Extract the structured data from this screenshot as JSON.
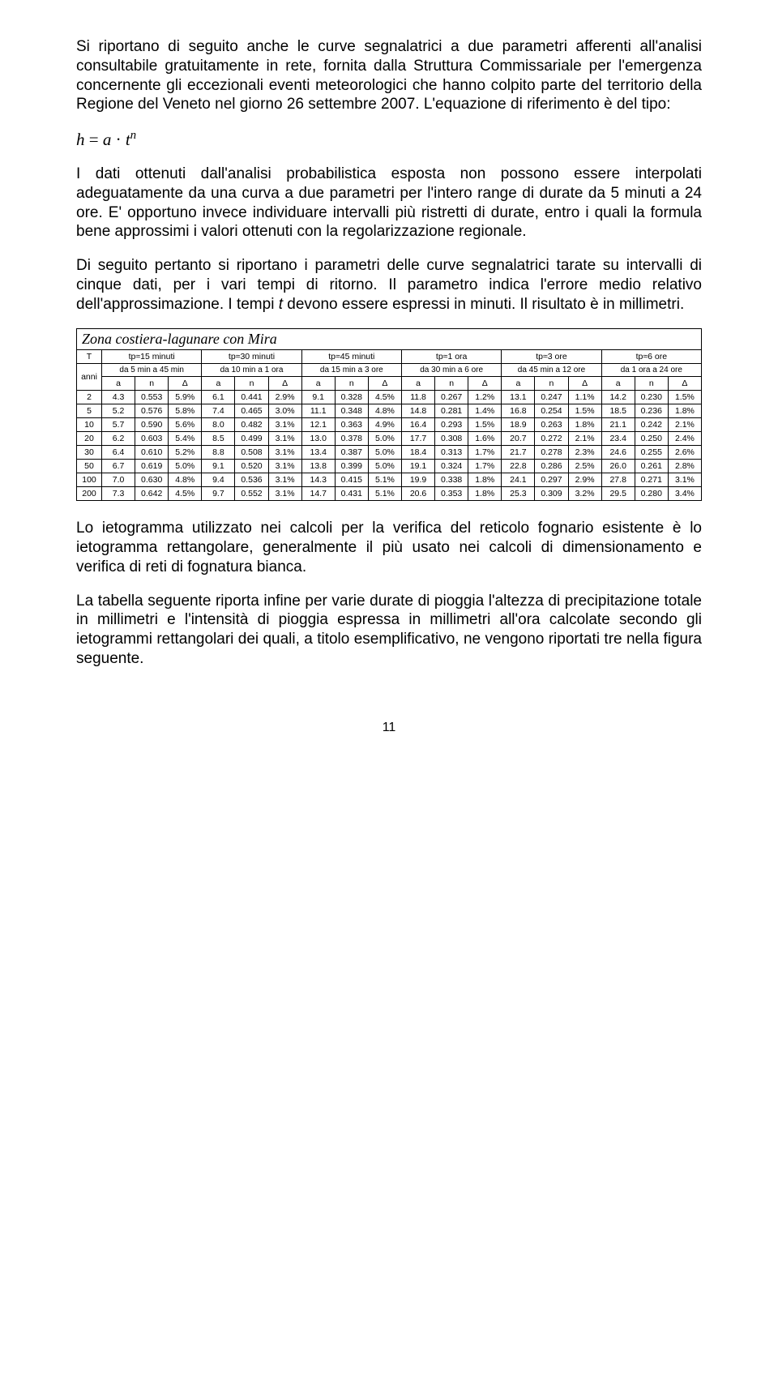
{
  "paragraphs": {
    "p1": "Si riportano di seguito anche le curve segnalatrici a due parametri afferenti all'analisi consultabile gratuitamente in rete, fornita dalla Struttura Commissariale per l'emergenza concernente gli eccezionali eventi meteorologici che hanno colpito parte del territorio della Regione del Veneto nel giorno 26 settembre 2007. L'equazione di riferimento è del tipo:",
    "formula_a": "h",
    "formula_eq": "=",
    "formula_b": "a",
    "formula_c": "t",
    "formula_sup": "n",
    "p2": "I dati ottenuti dall'analisi probabilistica esposta non possono essere interpolati adeguatamente da una curva a due parametri per l'intero range di durate da 5 minuti a 24 ore. E' opportuno invece individuare intervalli più ristretti di durate, entro i quali la formula bene approssimi i valori ottenuti con la regolarizzazione regionale.",
    "p3a": "Di seguito pertanto si riportano i parametri delle curve segnalatrici tarate su intervalli di cinque dati, per i vari tempi di ritorno. Il parametro ",
    "p3b": "indica l'errore medio relativo dell'approssimazione. I tempi ",
    "p3c": "t",
    "p3d": " devono essere espressi in minuti. Il risultato è in millimetri.",
    "p4": "Lo ietogramma utilizzato nei calcoli per la verifica del reticolo fognario esistente è lo ietogramma rettangolare, generalmente il più usato nei calcoli di dimensionamento e verifica di reti di fognatura bianca.",
    "p5": "La tabella seguente riporta infine per varie durate di pioggia l'altezza di precipitazione totale in millimetri e l'intensità di pioggia espressa in millimetri all'ora calcolate secondo gli ietogrammi rettangolari dei quali, a titolo esemplificativo, ne vengono riportati tre nella figura seguente."
  },
  "table": {
    "title": "Zona costiera-lagunare con Mira",
    "T_label": "T",
    "anni_label": "anni",
    "tp_labels": [
      "tp≈15 minuti",
      "tp≈30 minuti",
      "tp≈45 minuti",
      "tp≈1 ora",
      "tp≈3 ore",
      "tp≈6 ore"
    ],
    "ranges": [
      "da 5 min a 45 min",
      "da 10 min a 1 ora",
      "da 15 min a 3 ore",
      "da 30 min a 6 ore",
      "da 45 min a 12 ore",
      "da 1 ora a 24 ore"
    ],
    "sub_cols": [
      "a",
      "n",
      "Δ"
    ],
    "rows": [
      {
        "T": "2",
        "v": [
          "4.3",
          "0.553",
          "5.9%",
          "6.1",
          "0.441",
          "2.9%",
          "9.1",
          "0.328",
          "4.5%",
          "11.8",
          "0.267",
          "1.2%",
          "13.1",
          "0.247",
          "1.1%",
          "14.2",
          "0.230",
          "1.5%"
        ]
      },
      {
        "T": "5",
        "v": [
          "5.2",
          "0.576",
          "5.8%",
          "7.4",
          "0.465",
          "3.0%",
          "11.1",
          "0.348",
          "4.8%",
          "14.8",
          "0.281",
          "1.4%",
          "16.8",
          "0.254",
          "1.5%",
          "18.5",
          "0.236",
          "1.8%"
        ]
      },
      {
        "T": "10",
        "v": [
          "5.7",
          "0.590",
          "5.6%",
          "8.0",
          "0.482",
          "3.1%",
          "12.1",
          "0.363",
          "4.9%",
          "16.4",
          "0.293",
          "1.5%",
          "18.9",
          "0.263",
          "1.8%",
          "21.1",
          "0.242",
          "2.1%"
        ]
      },
      {
        "T": "20",
        "v": [
          "6.2",
          "0.603",
          "5.4%",
          "8.5",
          "0.499",
          "3.1%",
          "13.0",
          "0.378",
          "5.0%",
          "17.7",
          "0.308",
          "1.6%",
          "20.7",
          "0.272",
          "2.1%",
          "23.4",
          "0.250",
          "2.4%"
        ]
      },
      {
        "T": "30",
        "v": [
          "6.4",
          "0.610",
          "5.2%",
          "8.8",
          "0.508",
          "3.1%",
          "13.4",
          "0.387",
          "5.0%",
          "18.4",
          "0.313",
          "1.7%",
          "21.7",
          "0.278",
          "2.3%",
          "24.6",
          "0.255",
          "2.6%"
        ]
      },
      {
        "T": "50",
        "v": [
          "6.7",
          "0.619",
          "5.0%",
          "9.1",
          "0.520",
          "3.1%",
          "13.8",
          "0.399",
          "5.0%",
          "19.1",
          "0.324",
          "1.7%",
          "22.8",
          "0.286",
          "2.5%",
          "26.0",
          "0.261",
          "2.8%"
        ]
      },
      {
        "T": "100",
        "v": [
          "7.0",
          "0.630",
          "4.8%",
          "9.4",
          "0.536",
          "3.1%",
          "14.3",
          "0.415",
          "5.1%",
          "19.9",
          "0.338",
          "1.8%",
          "24.1",
          "0.297",
          "2.9%",
          "27.8",
          "0.271",
          "3.1%"
        ]
      },
      {
        "T": "200",
        "v": [
          "7.3",
          "0.642",
          "4.5%",
          "9.7",
          "0.552",
          "3.1%",
          "14.7",
          "0.431",
          "5.1%",
          "20.6",
          "0.353",
          "1.8%",
          "25.3",
          "0.309",
          "3.2%",
          "29.5",
          "0.280",
          "3.4%"
        ]
      }
    ]
  },
  "pagenum": "11",
  "colors": {
    "text": "#000000",
    "bg": "#ffffff",
    "border": "#000000"
  }
}
